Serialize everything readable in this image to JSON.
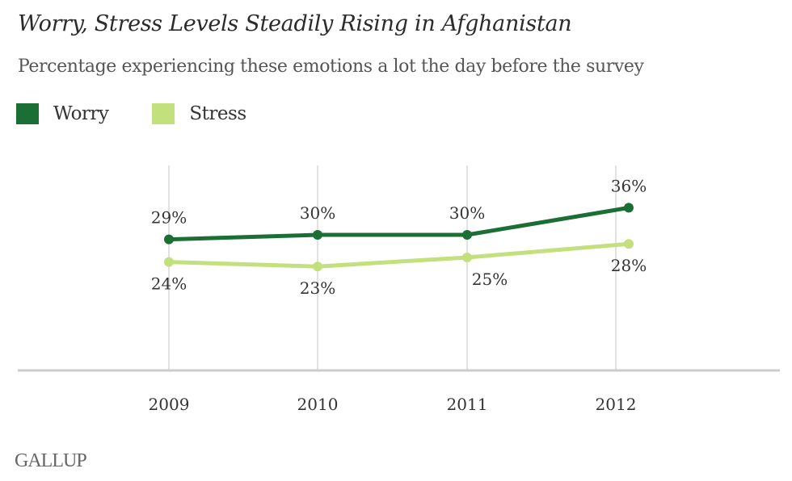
{
  "chart_data": {
    "type": "line",
    "title": "Worry, Stress Levels Steadily Rising in Afghanistan",
    "subtitle": "Percentage experiencing these emotions a lot the day before the survey",
    "categories": [
      "2009",
      "2010",
      "2011",
      "2012"
    ],
    "series": [
      {
        "name": "Worry",
        "color": "#1b6e34",
        "values": [
          29,
          30,
          30,
          36
        ],
        "labels": [
          "29%",
          "30%",
          "30%",
          "36%"
        ],
        "label_position": "above"
      },
      {
        "name": "Stress",
        "color": "#c2e07c",
        "values": [
          24,
          23,
          25,
          28
        ],
        "labels": [
          "24%",
          "23%",
          "25%",
          "28%"
        ],
        "label_position": "below"
      }
    ],
    "xlabel": "",
    "ylabel": "",
    "ylim": [
      0,
      45
    ],
    "grid": "vertical",
    "legend": "top-left"
  },
  "source": "GALLUP"
}
